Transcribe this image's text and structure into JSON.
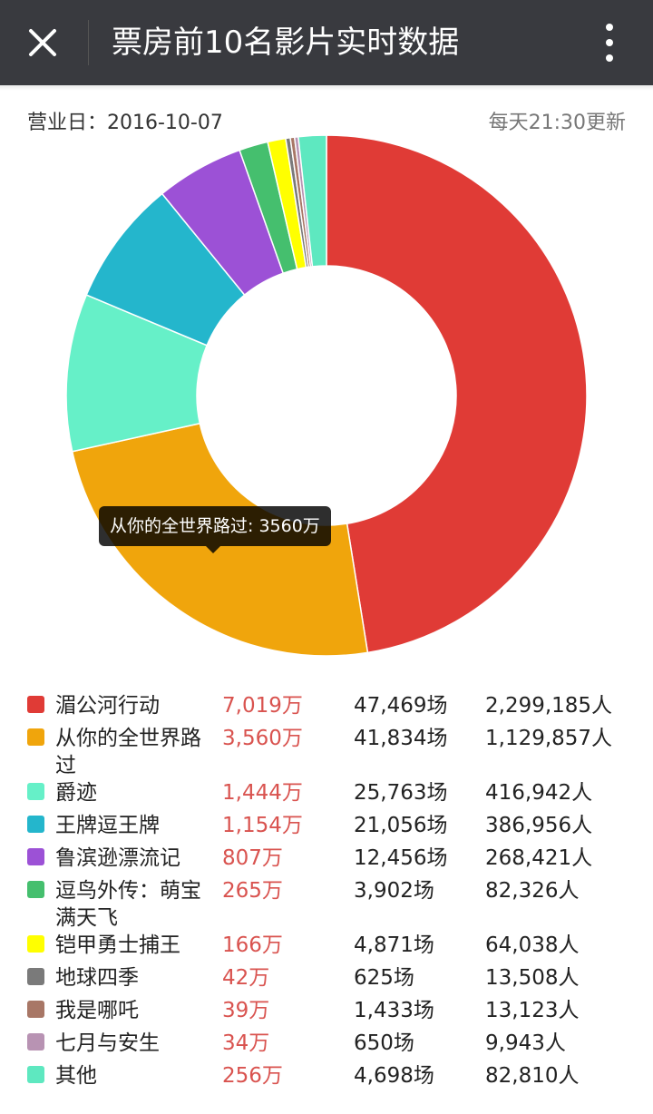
{
  "header": {
    "title": "票房前10名影片实时数据",
    "close_icon": "close-icon",
    "more_icon": "more-vertical-icon"
  },
  "info": {
    "business_day": "营业日：2016-10-07",
    "update_note": "每天21:30更新"
  },
  "tooltip": {
    "text": "从你的全世界路过: 3560万"
  },
  "chart_data": {
    "type": "pie",
    "style": "donut",
    "unit": "万",
    "legend_placement": "bottom",
    "categories": [
      "湄公河行动",
      "从你的全世界路过",
      "爵迹",
      "王牌逗王牌",
      "鲁滨逊漂流记",
      "逗鸟外传：萌宝满天飞",
      "铠甲勇士捕王",
      "地球四季",
      "我是哪吒",
      "七月与安生",
      "其他"
    ],
    "values": [
      7019,
      3560,
      1444,
      1154,
      807,
      265,
      166,
      42,
      39,
      34,
      256
    ],
    "colors": [
      "#e03b36",
      "#f0a50c",
      "#66f0c8",
      "#24b6cc",
      "#9c51d6",
      "#45bf6e",
      "#ffff00",
      "#7a7a7a",
      "#a87766",
      "#b893b3",
      "#5ee8c0"
    ]
  },
  "table": {
    "rows": [
      {
        "name": "湄公河行动",
        "box": "7,019万",
        "shows": "47,469场",
        "people": "2,299,185人",
        "color": "#e03b36"
      },
      {
        "name": "从你的全世界路过",
        "box": "3,560万",
        "shows": "41,834场",
        "people": "1,129,857人",
        "color": "#f0a50c"
      },
      {
        "name": "爵迹",
        "box": "1,444万",
        "shows": "25,763场",
        "people": "416,942人",
        "color": "#66f0c8"
      },
      {
        "name": "王牌逗王牌",
        "box": "1,154万",
        "shows": "21,056场",
        "people": "386,956人",
        "color": "#24b6cc"
      },
      {
        "name": "鲁滨逊漂流记",
        "box": "807万",
        "shows": "12,456场",
        "people": "268,421人",
        "color": "#9c51d6"
      },
      {
        "name": "逗鸟外传：萌宝满天飞",
        "box": "265万",
        "shows": "3,902场",
        "people": "82,326人",
        "color": "#45bf6e"
      },
      {
        "name": "铠甲勇士捕王",
        "box": "166万",
        "shows": "4,871场",
        "people": "64,038人",
        "color": "#ffff00"
      },
      {
        "name": "地球四季",
        "box": "42万",
        "shows": "625场",
        "people": "13,508人",
        "color": "#7a7a7a"
      },
      {
        "name": "我是哪吒",
        "box": "39万",
        "shows": "1,433场",
        "people": "13,123人",
        "color": "#a87766"
      },
      {
        "name": "七月与安生",
        "box": "34万",
        "shows": "650场",
        "people": "9,943人",
        "color": "#b893b3"
      },
      {
        "name": "其他",
        "box": "256万",
        "shows": "4,698场",
        "people": "82,810人",
        "color": "#5ee8c0"
      }
    ]
  }
}
